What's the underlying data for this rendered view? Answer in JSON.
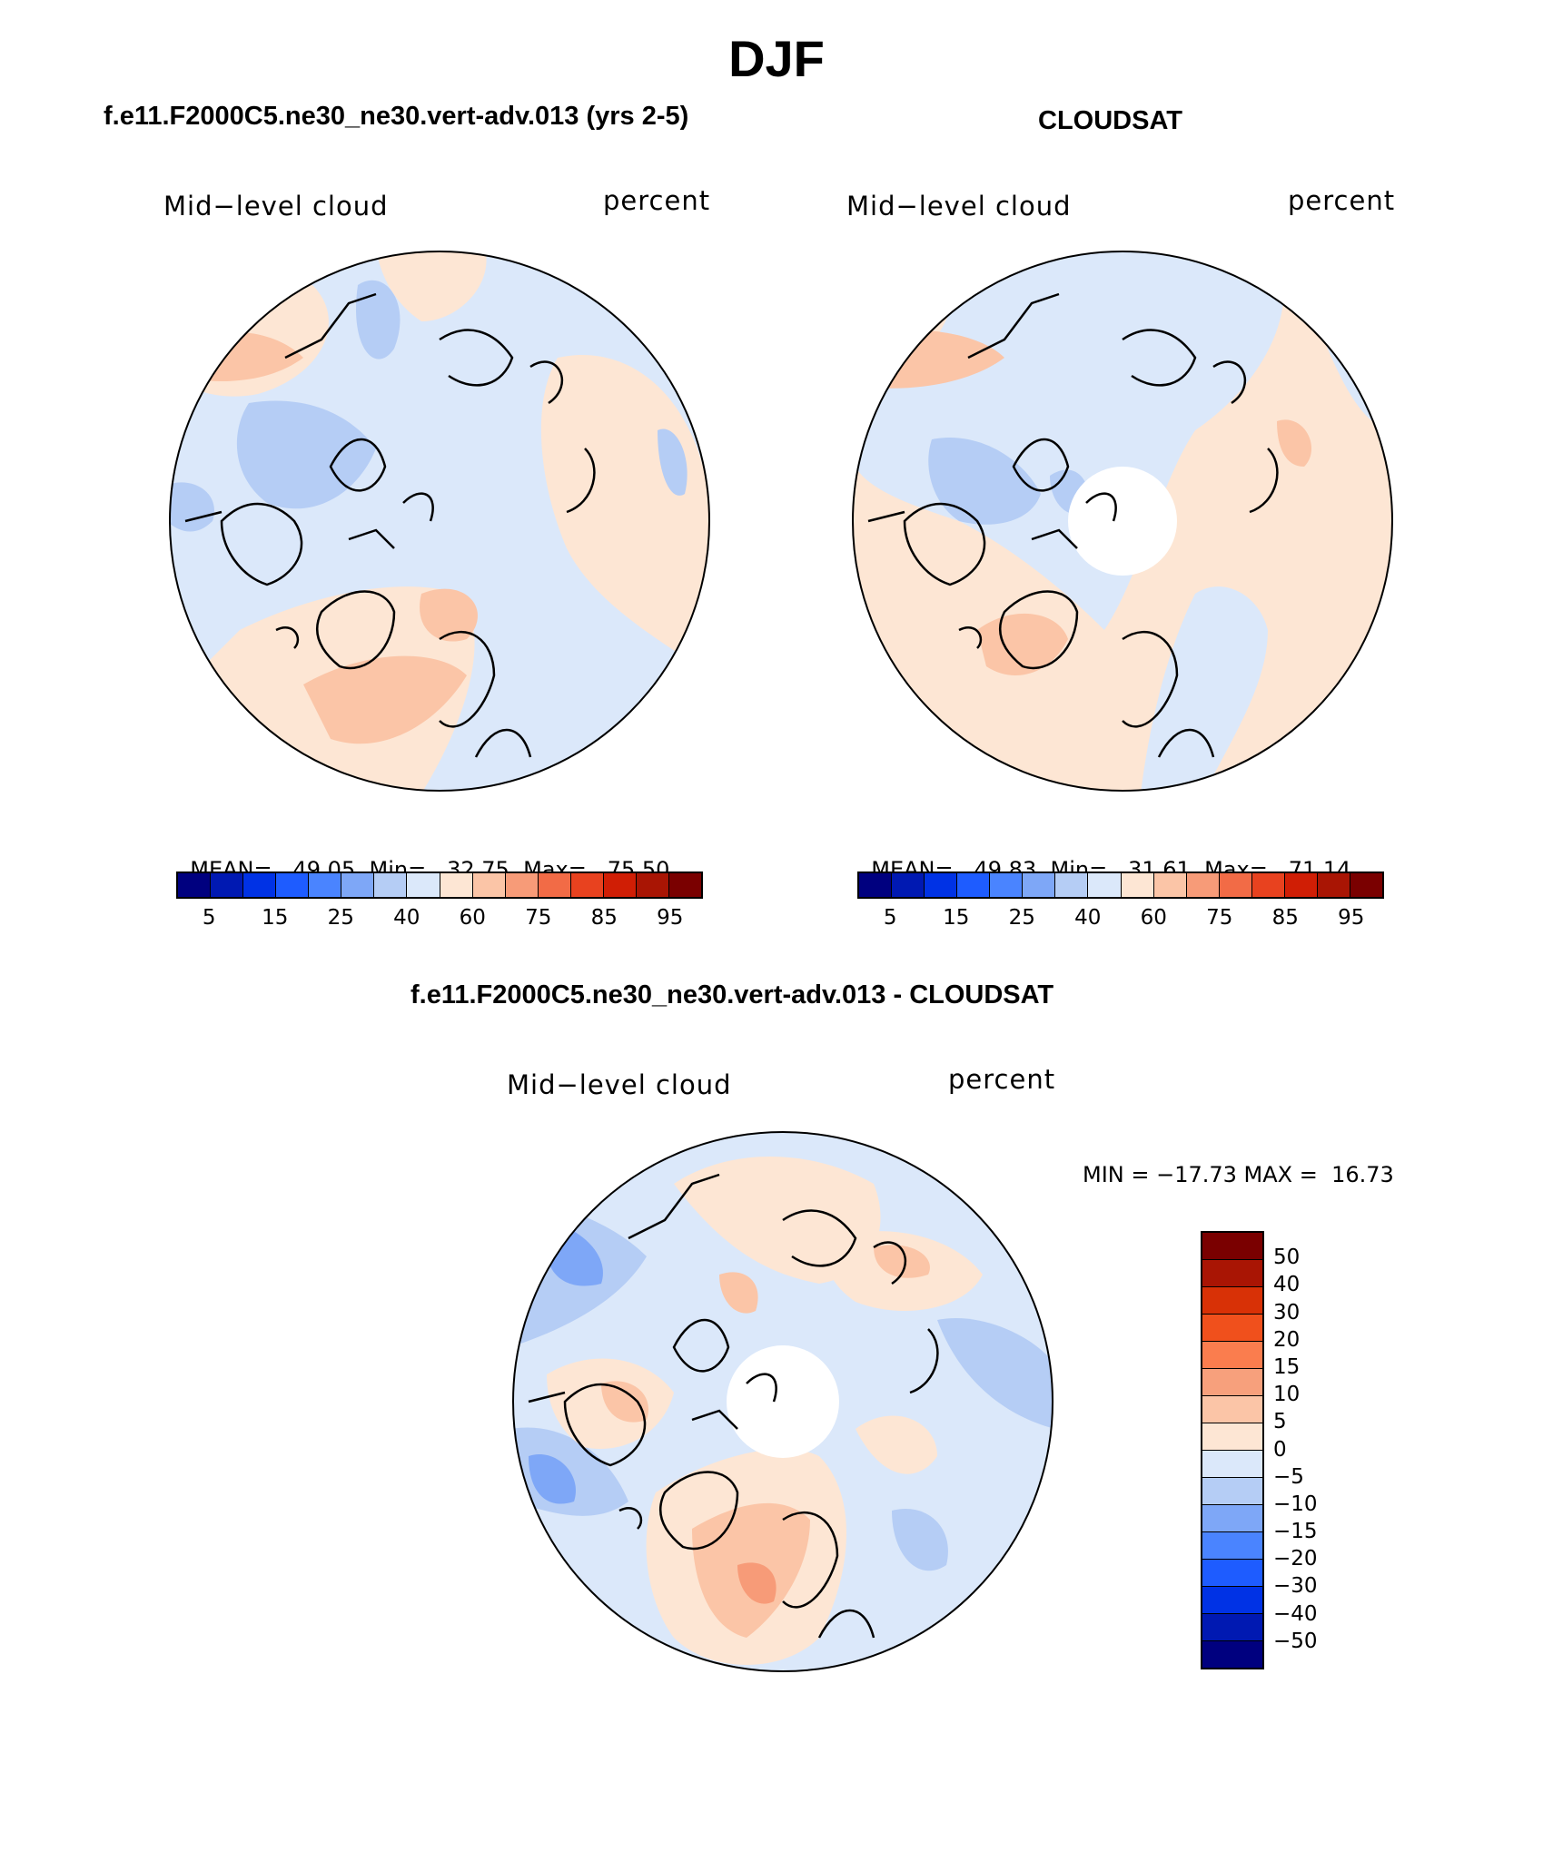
{
  "page": {
    "title": "DJF"
  },
  "panels": [
    {
      "title": "f.e11.F2000C5.ne30_ne30.vert-adv.013 (yrs 2-5)",
      "left_label": "Mid−level cloud",
      "right_label": "percent",
      "stats": {
        "mean_label": "MEAN=",
        "mean": "49.05",
        "min_label": "Min=",
        "min": "32.75",
        "max_label": "Max=",
        "max": "75.50"
      }
    },
    {
      "title": "CLOUDSAT",
      "left_label": "Mid−level cloud",
      "right_label": "percent",
      "stats": {
        "mean_label": "MEAN=",
        "mean": "49.83",
        "min_label": "Min=",
        "min": "31.61",
        "max_label": "Max=",
        "max": "71.14"
      }
    }
  ],
  "difference_panel": {
    "title": "f.e11.F2000C5.ne30_ne30.vert-adv.013 - CLOUDSAT",
    "left_label": "Mid−level cloud",
    "right_label": "percent",
    "minmax": "MIN = −17.73 MAX =  16.73"
  },
  "abs_colorbar": {
    "colors": [
      "#00007f",
      "#0019b2",
      "#0032e5",
      "#1e5cff",
      "#4a84ff",
      "#7ea7f7",
      "#b5cdf5",
      "#dbe8fa",
      "#fde6d4",
      "#fbc5a7",
      "#f79b78",
      "#f26b46",
      "#e8421f",
      "#d01e05",
      "#a91504",
      "#7a0000"
    ],
    "tick_labels": [
      "5",
      "15",
      "25",
      "40",
      "60",
      "75",
      "85",
      "95"
    ]
  },
  "diff_colorbar": {
    "colors_top_to_bottom": [
      "#7a0000",
      "#a91504",
      "#d83106",
      "#f0501c",
      "#fa7d4e",
      "#f7a07c",
      "#fbc5a7",
      "#fde6d4",
      "#dbe8fa",
      "#b5cdf5",
      "#7ea7f7",
      "#4a84ff",
      "#1e5cff",
      "#0032e5",
      "#0019b2",
      "#00007f"
    ],
    "tick_labels": [
      "50",
      "40",
      "30",
      "20",
      "15",
      "10",
      "5",
      "0",
      "−5",
      "−10",
      "−15",
      "−20",
      "−30",
      "−40",
      "−50"
    ]
  },
  "map_colors": {
    "light_blue": "#dbe8fa",
    "blue": "#b5cdf5",
    "mid_blue": "#7ea7f7",
    "peach": "#fde6d4",
    "salmon": "#fbc5a7",
    "orange": "#f79b78",
    "hole": "#ffffff",
    "coast": "#000000"
  }
}
